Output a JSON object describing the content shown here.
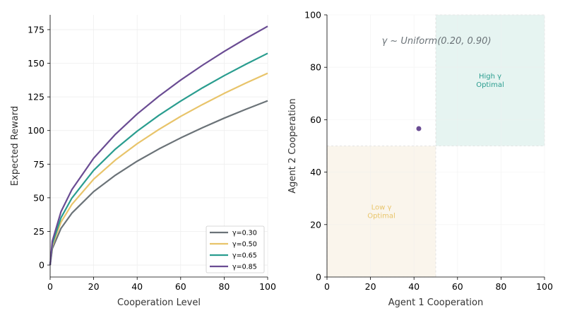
{
  "chart_data": [
    {
      "type": "line",
      "xlabel": "Cooperation Level",
      "ylabel": "Expected Reward",
      "xlim": [
        0,
        100
      ],
      "ylim": [
        -8.9,
        186
      ],
      "xticks": [
        0,
        20,
        40,
        60,
        80,
        100
      ],
      "yticks": [
        0,
        25,
        50,
        75,
        100,
        125,
        150,
        175
      ],
      "grid": true,
      "legend_position": "bottom-right",
      "series": [
        {
          "name": "γ=0.30",
          "color": "#6b7378",
          "x": [
            0,
            1,
            5,
            10,
            20,
            30,
            40,
            50,
            60,
            70,
            80,
            90,
            100
          ],
          "y": [
            0,
            12.2,
            27.3,
            38.6,
            54.6,
            66.8,
            77.2,
            86.3,
            94.5,
            102.1,
            109.2,
            115.8,
            122.1
          ]
        },
        {
          "name": "γ=0.50",
          "color": "#e8c46a",
          "x": [
            0,
            1,
            5,
            10,
            20,
            30,
            40,
            50,
            60,
            70,
            80,
            90,
            100
          ],
          "y": [
            0,
            14.3,
            31.9,
            45.1,
            63.8,
            78.1,
            90.2,
            100.8,
            110.5,
            119.3,
            127.6,
            135.3,
            142.6
          ]
        },
        {
          "name": "γ=0.65",
          "color": "#2a9d8f",
          "x": [
            0,
            1,
            5,
            10,
            20,
            30,
            40,
            50,
            60,
            70,
            80,
            90,
            100
          ],
          "y": [
            0,
            15.7,
            35.2,
            49.8,
            70.4,
            86.2,
            99.5,
            111.3,
            121.9,
            131.7,
            140.8,
            149.3,
            157.4
          ]
        },
        {
          "name": "γ=0.85",
          "color": "#6a4c93",
          "x": [
            0,
            1,
            5,
            10,
            20,
            30,
            40,
            50,
            60,
            70,
            80,
            90,
            100
          ],
          "y": [
            0,
            17.8,
            39.7,
            56.1,
            79.4,
            97.2,
            112.3,
            125.5,
            137.5,
            148.5,
            158.8,
            168.4,
            177.5
          ]
        }
      ]
    },
    {
      "type": "scatter",
      "xlabel": "Agent 1 Cooperation",
      "ylabel": "Agent 2 Cooperation",
      "xlim": [
        0,
        100
      ],
      "ylim": [
        0,
        100
      ],
      "xticks": [
        0,
        20,
        40,
        60,
        80,
        100
      ],
      "yticks": [
        0,
        20,
        40,
        60,
        80,
        100
      ],
      "grid": true,
      "annotation": "γ ~ Uniform(0.20, 0.90)",
      "regions": [
        {
          "label_line1": "High γ",
          "label_line2": "Optimal",
          "x_range": [
            50,
            100
          ],
          "y_range": [
            50,
            100
          ],
          "fill": "#e6f4f1",
          "text_color": "#2a9d8f"
        },
        {
          "label_line1": "Low γ",
          "label_line2": "Optimal",
          "x_range": [
            0,
            50
          ],
          "y_range": [
            0,
            50
          ],
          "fill": "#faf5ec",
          "text_color": "#e8c46a"
        }
      ],
      "points": [
        {
          "x": 42.2,
          "y": 56.6,
          "color": "#6a4c93"
        }
      ]
    }
  ]
}
